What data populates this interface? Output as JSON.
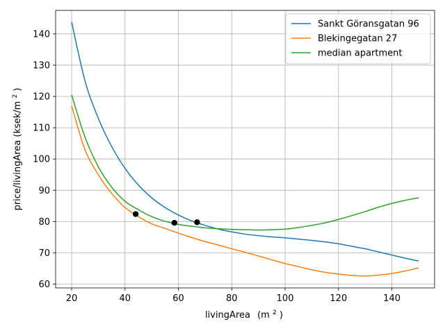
{
  "chart_data": {
    "type": "line",
    "xlabel": "livingArea",
    "xlabel_unit": "(m",
    "xlabel_unit_exp": "2",
    "xlabel_unit_close": ")",
    "ylabel": "price/livingArea (ksek/m",
    "ylabel_exp": "2",
    "ylabel_close": ")",
    "xlim": [
      14,
      156
    ],
    "ylim": [
      58.8,
      147.5
    ],
    "xticks": [
      20,
      40,
      60,
      80,
      100,
      120,
      140
    ],
    "yticks": [
      60,
      70,
      80,
      90,
      100,
      110,
      120,
      130,
      140
    ],
    "grid": true,
    "legend_position": "top-right",
    "series": [
      {
        "name": "Sankt Göransgatan 96",
        "color": "#1f77b4",
        "x": [
          20,
          25,
          30,
          35,
          40,
          45,
          50,
          55,
          60,
          65,
          70,
          75,
          80,
          85,
          90,
          95,
          100,
          105,
          110,
          115,
          120,
          125,
          130,
          135,
          140,
          145,
          150
        ],
        "y": [
          143.8,
          125.0,
          113.0,
          104.0,
          97.0,
          91.7,
          87.6,
          84.5,
          82.1,
          80.2,
          78.8,
          77.6,
          76.7,
          76.0,
          75.5,
          75.1,
          74.8,
          74.4,
          74.0,
          73.5,
          72.9,
          72.1,
          71.3,
          70.3,
          69.3,
          68.3,
          67.4
        ]
      },
      {
        "name": "Blekingegatan 27",
        "color": "#ff7f0e",
        "x": [
          20,
          25,
          30,
          35,
          40,
          45,
          50,
          55,
          60,
          65,
          70,
          75,
          80,
          85,
          90,
          95,
          100,
          105,
          110,
          115,
          120,
          125,
          130,
          135,
          140,
          145,
          150
        ],
        "y": [
          117.0,
          103.0,
          95.0,
          89.0,
          84.5,
          81.6,
          79.3,
          77.8,
          76.3,
          74.9,
          73.6,
          72.5,
          71.3,
          70.2,
          69.0,
          67.8,
          66.6,
          65.6,
          64.6,
          63.8,
          63.2,
          62.8,
          62.6,
          62.9,
          63.4,
          64.2,
          65.2
        ]
      },
      {
        "name": "median apartment",
        "color": "#2ca02c",
        "x": [
          20,
          25,
          30,
          35,
          40,
          45,
          50,
          55,
          60,
          65,
          70,
          75,
          80,
          85,
          90,
          95,
          100,
          105,
          110,
          115,
          120,
          125,
          130,
          135,
          140,
          145,
          150
        ],
        "y": [
          120.5,
          107.0,
          97.5,
          91.0,
          86.5,
          83.8,
          81.6,
          80.1,
          79.1,
          78.5,
          78.0,
          77.7,
          77.5,
          77.4,
          77.3,
          77.4,
          77.6,
          78.1,
          78.8,
          79.6,
          80.7,
          81.9,
          83.2,
          84.6,
          85.8,
          86.8,
          87.6
        ]
      }
    ],
    "markers": {
      "color": "#000000",
      "points": [
        {
          "x": 44,
          "y": 82.4
        },
        {
          "x": 58.5,
          "y": 79.6
        },
        {
          "x": 67,
          "y": 79.8
        }
      ]
    }
  }
}
